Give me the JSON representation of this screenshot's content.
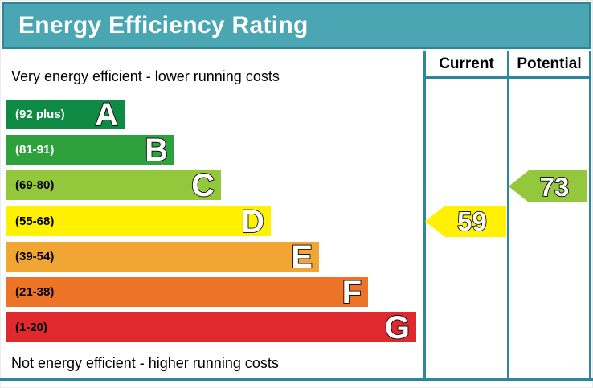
{
  "title": "Energy Efficiency Rating",
  "table": {
    "current_header": "Current",
    "potential_header": "Potential"
  },
  "captions": {
    "top": "Very energy efficient - lower running costs",
    "bottom": "Not energy efficient - higher running costs"
  },
  "bands": [
    {
      "letter": "A",
      "range_label": "(92 plus)",
      "color": "#0e8a44"
    },
    {
      "letter": "B",
      "range_label": "(81-91)",
      "color": "#2fa13c"
    },
    {
      "letter": "C",
      "range_label": "(69-80)",
      "color": "#93c83d"
    },
    {
      "letter": "D",
      "range_label": "(55-68)",
      "color": "#fff100"
    },
    {
      "letter": "E",
      "range_label": "(39-54)",
      "color": "#f1a633"
    },
    {
      "letter": "F",
      "range_label": "(21-38)",
      "color": "#ed7426"
    },
    {
      "letter": "G",
      "range_label": "(1-20)",
      "color": "#e0292e"
    }
  ],
  "ratings": {
    "current": {
      "value": "59",
      "band": "D",
      "color": "#fff100"
    },
    "potential": {
      "value": "73",
      "band": "C",
      "color": "#93c83d"
    }
  },
  "colors": {
    "banner_background": "#4ba6b4",
    "banner_border": "#2f8595",
    "grid_line": "#2b8799"
  },
  "chart_data": {
    "type": "bar",
    "title": "Energy Efficiency Rating",
    "categories": [
      "A",
      "B",
      "C",
      "D",
      "E",
      "F",
      "G"
    ],
    "band_ranges": [
      "92 plus",
      "81-91",
      "69-80",
      "55-68",
      "39-54",
      "21-38",
      "1-20"
    ],
    "band_colors": [
      "#0e8a44",
      "#2fa13c",
      "#93c83d",
      "#fff100",
      "#f1a633",
      "#ed7426",
      "#e0292e"
    ],
    "series": [
      {
        "name": "Current",
        "value": 59,
        "band": "D"
      },
      {
        "name": "Potential",
        "value": 73,
        "band": "C"
      }
    ],
    "xlabel": "",
    "ylabel": "",
    "annotations": [
      "Very energy efficient - lower running costs",
      "Not energy efficient - higher running costs"
    ],
    "legend_position": "top-right-columns",
    "grid": false
  }
}
